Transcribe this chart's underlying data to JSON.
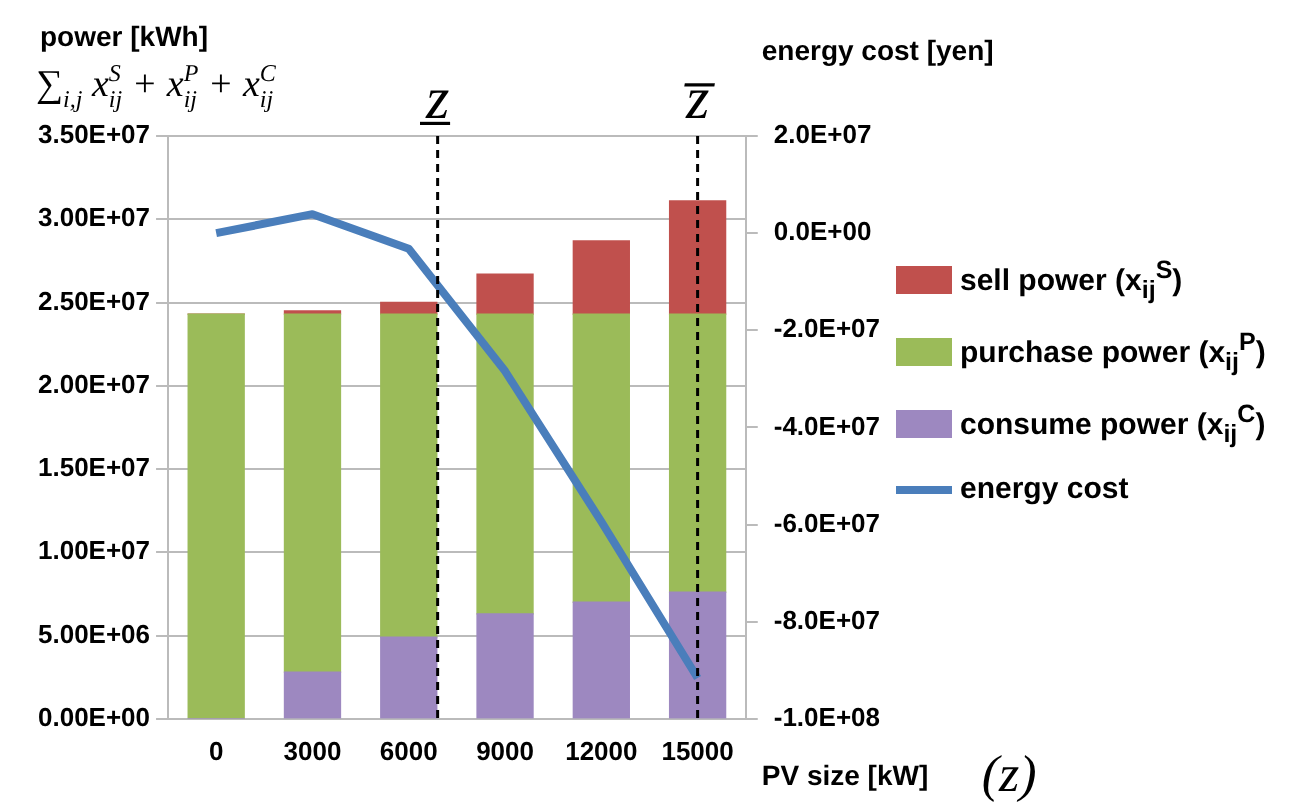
{
  "chart_data": {
    "type": "bar",
    "stacked": true,
    "xlabel": "PV size [kW]",
    "ylabel": "power [kWh]",
    "y2label": "energy cost [yen]",
    "annotations": [
      "∑$_{i,j}$ x$_{ij}$$^{S}$ + x$_{ij}$$^{P}$ + x$_{ij}$$^{C}$",
      "(z)"
    ],
    "x": [
      0,
      3000,
      6000,
      9000,
      12000,
      15000
    ],
    "xlim": [
      -1500,
      16500
    ],
    "xticks": [
      0,
      3000,
      6000,
      9000,
      12000,
      15000
    ],
    "ylim": [
      0,
      35000000
    ],
    "yticks": [
      {
        "value": 0,
        "label": "0.00E+00"
      },
      {
        "value": 5000000,
        "label": "5.00E+06"
      },
      {
        "value": 10000000,
        "label": "1.00E+07"
      },
      {
        "value": 15000000,
        "label": "1.50E+07"
      },
      {
        "value": 20000000,
        "label": "2.00E+07"
      },
      {
        "value": 25000000,
        "label": "2.50E+07"
      },
      {
        "value": 30000000,
        "label": "3.00E+07"
      },
      {
        "value": 35000000,
        "label": "3.50E+07"
      }
    ],
    "y2lim": [
      -100000000,
      20000000
    ],
    "y2ticks": [
      {
        "value": -100000000,
        "label": "-1.0E+08"
      },
      {
        "value": -80000000,
        "label": "-8.0E+07"
      },
      {
        "value": -60000000,
        "label": "-6.0E+07"
      },
      {
        "value": -40000000,
        "label": "-4.0E+07"
      },
      {
        "value": -20000000,
        "label": "-2.0E+07"
      },
      {
        "value": 0,
        "label": "0.0E+00"
      },
      {
        "value": 20000000,
        "label": "2.0E+07"
      }
    ],
    "series": [
      {
        "name": "consume power (x$_{ij}$$^{C}$)",
        "color": "#9d88c0",
        "values": [
          0,
          2800000,
          4900000,
          6300000,
          7000000,
          7600000
        ]
      },
      {
        "name": "purchase power (x$_{ij}$$^{P}$)",
        "color": "#9bbb59",
        "values": [
          24300000,
          21500000,
          19400000,
          18000000,
          17300000,
          16700000
        ]
      },
      {
        "name": "sell power (x$_{ij}$$^{S}$)",
        "color": "#c0504d",
        "values": [
          0,
          200000,
          700000,
          2400000,
          4400000,
          6800000
        ]
      },
      {
        "name": "energy cost",
        "type": "line",
        "axis": "y2",
        "color": "#4a7ebb",
        "values": [
          0,
          3900000,
          -3200000,
          -28400000,
          -59400000,
          -91600000
        ]
      }
    ],
    "ref_lines": [
      {
        "axis": "x",
        "value": 6900,
        "label": "z̲",
        "line_style": "dashed",
        "color": "#000000"
      },
      {
        "axis": "x",
        "value": 15000,
        "label": "z̅",
        "line_style": "dashed",
        "color": "#000000"
      }
    ],
    "grid": "y",
    "legend": "right"
  }
}
